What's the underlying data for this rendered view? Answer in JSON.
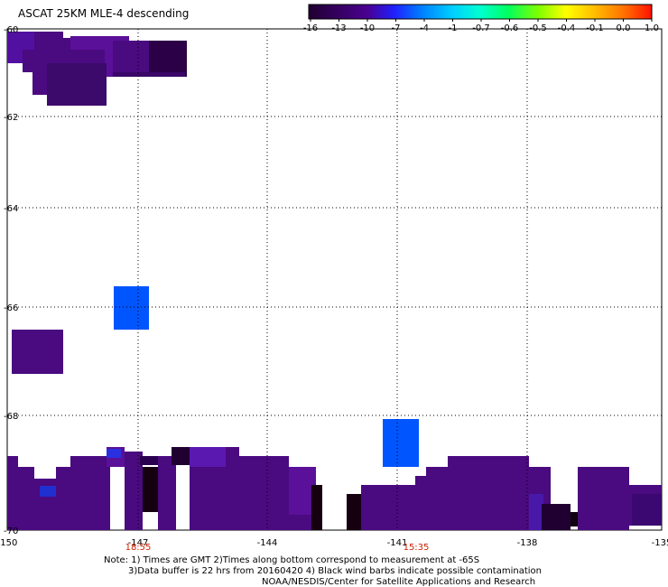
{
  "title": "ASCAT 25KM MLE-4 descending",
  "colorbar": {
    "labels": [
      "-16",
      "-13",
      "-10",
      "-7",
      "-4",
      "-1",
      "-0.7",
      "-0.6",
      "-0.5",
      "-0.4",
      "-0.1",
      "0.0",
      "1.0"
    ],
    "colors": [
      "#2a0040",
      "#3a0070",
      "#5a00b0",
      "#2020ff",
      "#0080ff",
      "#00c0ff",
      "#00ffd0",
      "#00ff60",
      "#a0ff00",
      "#ffff00",
      "#ffc000",
      "#ff6000",
      "#ff0000"
    ]
  },
  "axes": {
    "lat_labels": [
      "-60",
      "-62",
      "-64",
      "-66",
      "-68",
      "-70"
    ],
    "lon_labels": [
      "-150",
      "-147",
      "-144",
      "-141",
      "-138",
      "-135"
    ]
  },
  "pass_times": [
    "18:55",
    "15:35"
  ],
  "notes": {
    "line1": "Note: 1) Times are GMT 2)Times along bottom correspond to measurement at -65S",
    "line2": "3)Data buffer is 22 hrs from 20160420 4) Black wind barbs indicate possible contamination",
    "line3": "NOAA/NESDIS/Center for Satellite Applications and Research"
  },
  "colors": {
    "purple_dark": "#2c0046",
    "purple": "#4a0a80",
    "purple_light": "#5a1098",
    "blue": "#0055ff",
    "black": "#150010",
    "time_red": "#cc2200"
  }
}
